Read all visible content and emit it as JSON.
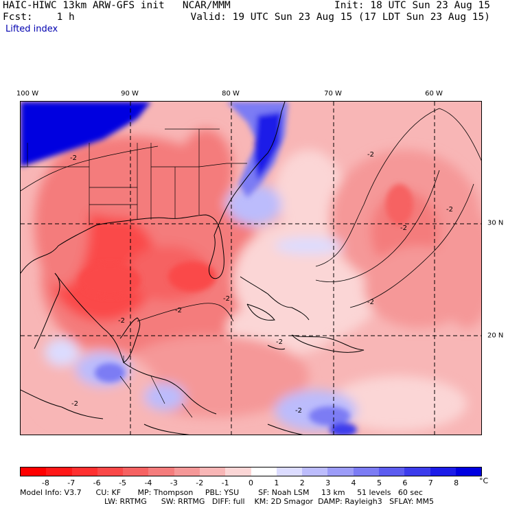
{
  "header": {
    "line1_left": "HAIC-HIWC 13km ARW-GFS init   NCAR/MMM",
    "line2_left": "Fcst:    1 h",
    "line1_right": "Init: 18 UTC Sun 23 Aug 15",
    "line2_right": "Valid: 19 UTC Sun 23 Aug 15 (17 LDT Sun 23 Aug 15)",
    "field": "Lifted index"
  },
  "axes": {
    "lon_labels": [
      "100 W",
      "90 W",
      "80 W",
      "70 W",
      "60 W"
    ],
    "lat_labels": [
      "30 N",
      "20 N"
    ]
  },
  "contour_labels": [
    "-2",
    "-2",
    "-2",
    "-2",
    "-2",
    "-2",
    "-2",
    "-2",
    "-2",
    "-2",
    "-2"
  ],
  "colorbar": {
    "labels": [
      "-8",
      "-7",
      "-6",
      "-5",
      "-4",
      "-3",
      "-2",
      "-1",
      "0",
      "1",
      "2",
      "3",
      "4",
      "5",
      "6",
      "7",
      "8"
    ],
    "unit": "°C",
    "colors": [
      "#ff0000",
      "#ff1818",
      "#ff3030",
      "#fa4848",
      "#f66262",
      "#f47c7c",
      "#f59898",
      "#f8b6b6",
      "#fbd6d6",
      "#ffffff",
      "#dcdcff",
      "#bcbcfc",
      "#9c9cf8",
      "#7c7cf4",
      "#5c5cf0",
      "#3c3cec",
      "#1c1ce8",
      "#0000e0"
    ]
  },
  "footer": {
    "line1": "Model Info: V3.7      CU: KF       MP: Thompson     PBL: YSU        SF: Noah LSM     13 km     51 levels   60 sec",
    "line2": "LW: RRTMG      SW: RRTMG   DIFF: full    KM: 2D Smagor  DAMP: Rayleigh3   SFLAY: MM5"
  }
}
